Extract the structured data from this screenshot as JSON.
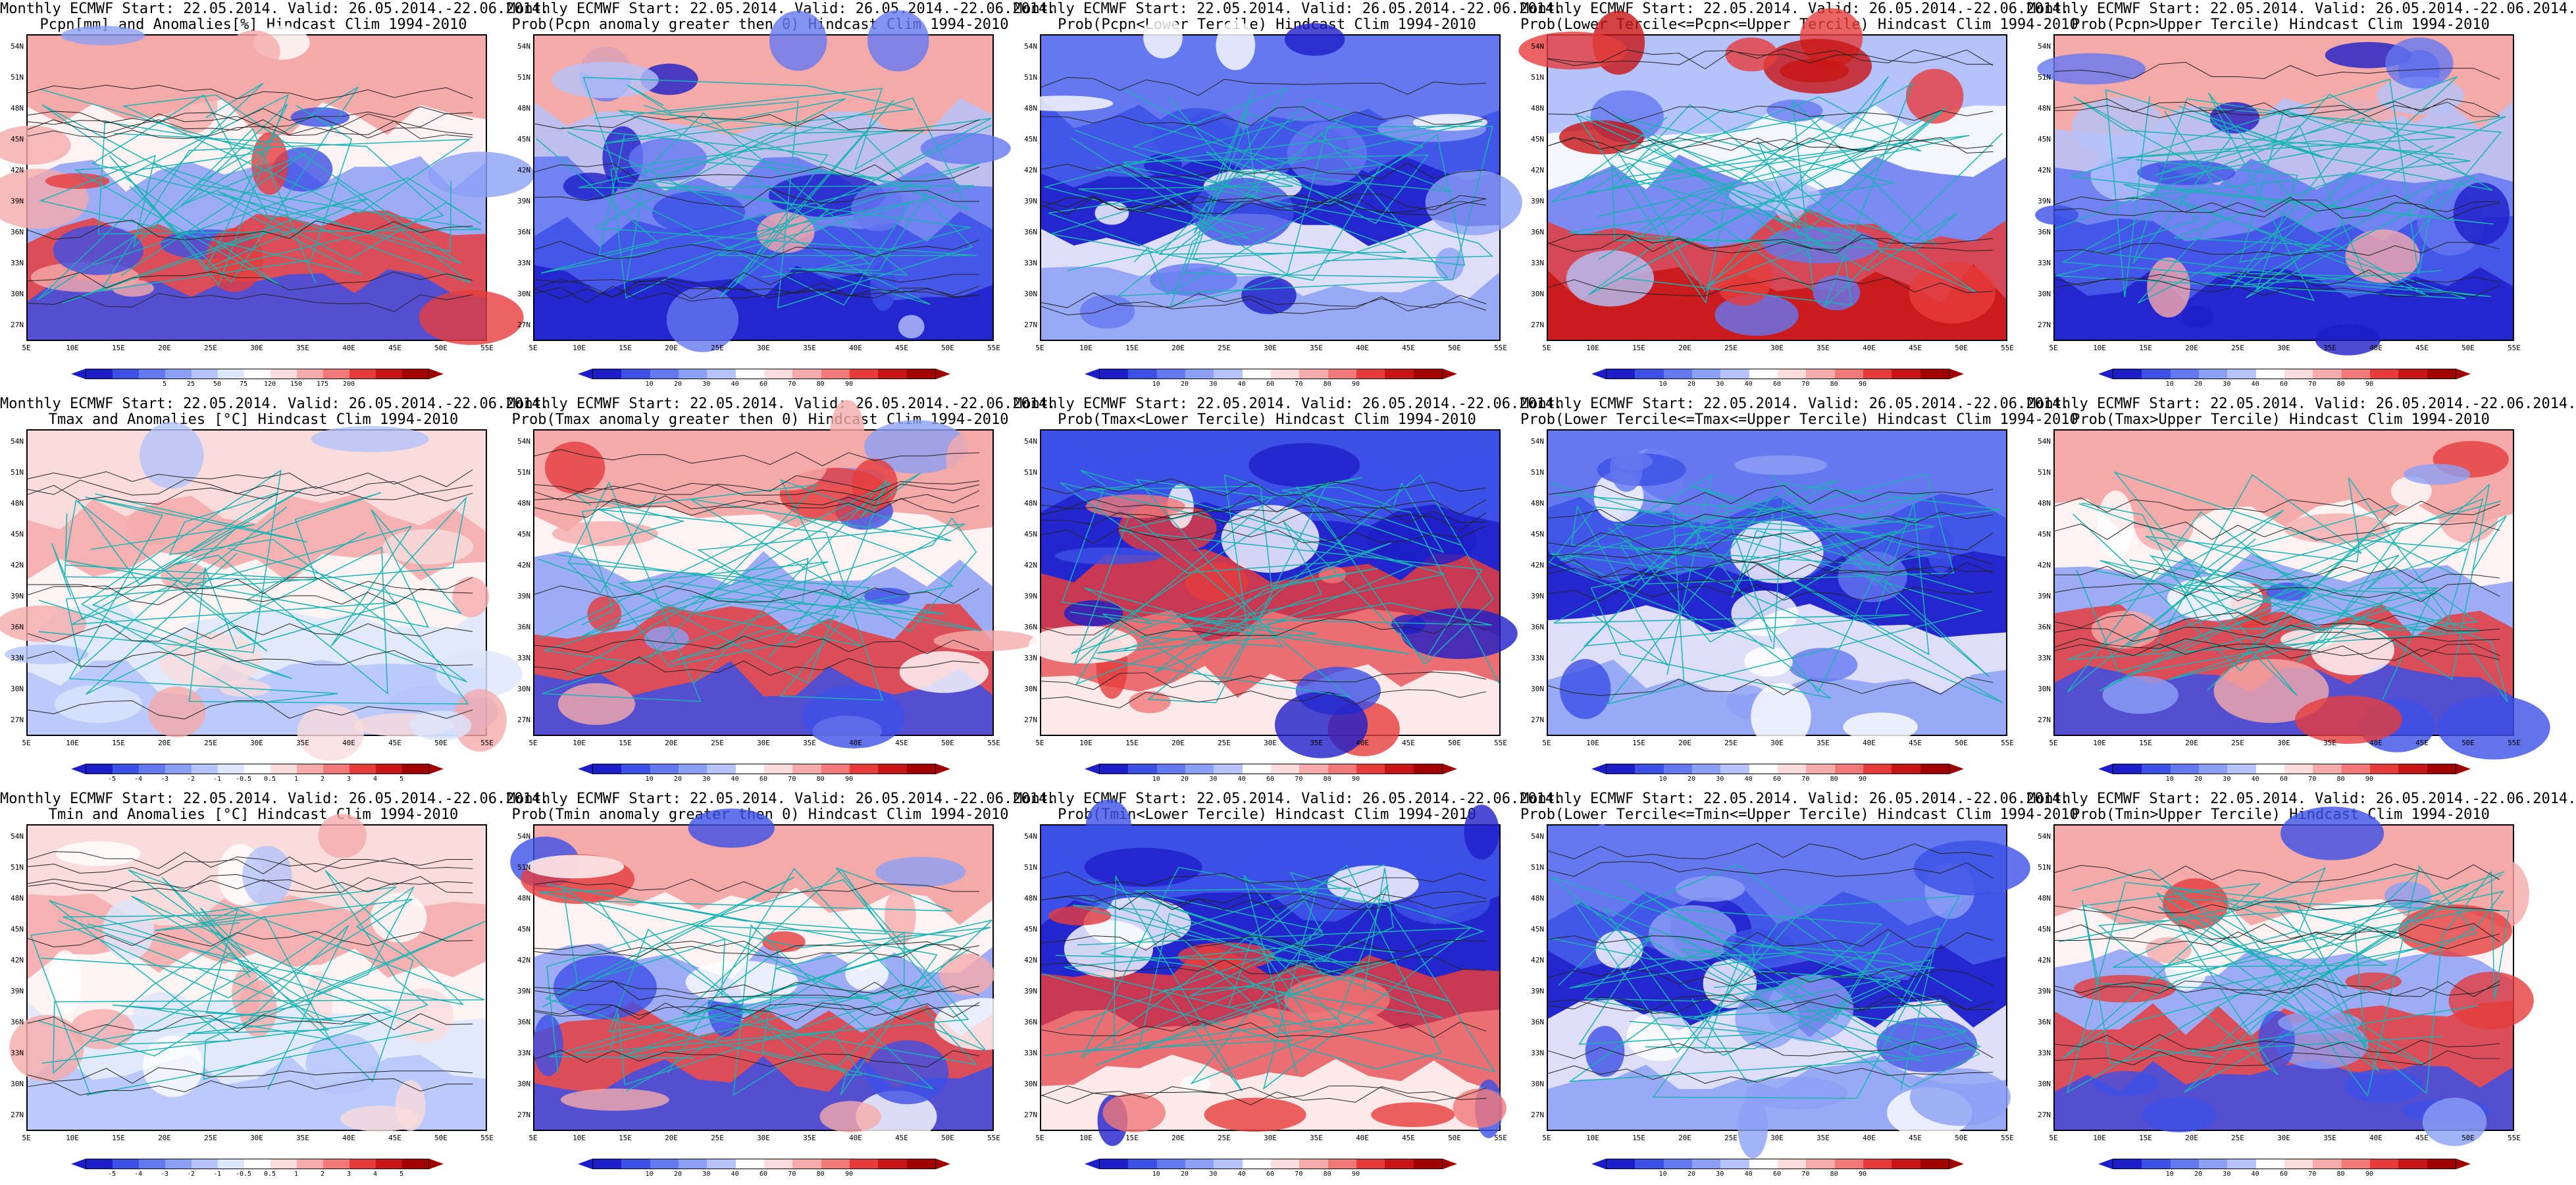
{
  "panels": [
    {
      "title1": "Monthly ECMWF Start: 22.05.2014. Valid: 26.05.2014.-22.06.2014.",
      "title2": "Pcpn[mm] and Anomalies[%] Hindcast Clim 1994-2010",
      "scale": "pcpn",
      "theme": "mixed"
    },
    {
      "title1": "Monthly ECMWF Start: 22.05.2014. Valid: 26.05.2014.-22.06.2014.",
      "title2": "Prob(Pcpn anomaly greater then 0) Hindcast Clim 1994-2010",
      "scale": "prob",
      "theme": "blue-south"
    },
    {
      "title1": "Monthly ECMWF Start: 22.05.2014. Valid: 26.05.2014.-22.06.2014.",
      "title2": "Prob(Pcpn<Lower Tercile) Hindcast Clim 1994-2010",
      "scale": "prob",
      "theme": "blue"
    },
    {
      "title1": "Monthly ECMWF Start: 22.05.2014. Valid: 26.05.2014.-22.06.2014.",
      "title2": "Prob(Lower Tercile<=Pcpn<=Upper Tercile) Hindcast Clim 1994-2010",
      "scale": "prob",
      "theme": "red-south"
    },
    {
      "title1": "Monthly ECMWF Start: 22.05.2014. Valid: 26.05.2014.-22.06.2014.",
      "title2": "Prob(Pcpn>Upper Tercile) Hindcast Clim 1994-2010",
      "scale": "prob",
      "theme": "blue-south"
    },
    {
      "title1": "Monthly ECMWF Start: 22.05.2014. Valid: 26.05.2014.-22.06.2014.",
      "title2": "Tmax and Anomalies [°C] Hindcast Clim 1994-2010",
      "scale": "temp",
      "theme": "light"
    },
    {
      "title1": "Monthly ECMWF Start: 22.05.2014. Valid: 26.05.2014.-22.06.2014.",
      "title2": "Prob(Tmax anomaly greater then 0) Hindcast Clim 1994-2010",
      "scale": "prob",
      "theme": "mixed"
    },
    {
      "title1": "Monthly ECMWF Start: 22.05.2014. Valid: 26.05.2014.-22.06.2014.",
      "title2": "Prob(Tmax<Lower Tercile) Hindcast Clim 1994-2010",
      "scale": "prob",
      "theme": "red-west"
    },
    {
      "title1": "Monthly ECMWF Start: 22.05.2014. Valid: 26.05.2014.-22.06.2014.",
      "title2": "Prob(Lower Tercile<=Tmax<=Upper Tercile) Hindcast Clim 1994-2010",
      "scale": "prob",
      "theme": "blue"
    },
    {
      "title1": "Monthly ECMWF Start: 22.05.2014. Valid: 26.05.2014.-22.06.2014.",
      "title2": "Prob(Tmax>Upper Tercile) Hindcast Clim 1994-2010",
      "scale": "prob",
      "theme": "mixed"
    },
    {
      "title1": "Monthly ECMWF Start: 22.05.2014. Valid: 26.05.2014.-22.06.2014.",
      "title2": "Tmin and Anomalies [°C] Hindcast Clim 1994-2010",
      "scale": "temp",
      "theme": "light"
    },
    {
      "title1": "Monthly ECMWF Start: 22.05.2014. Valid: 26.05.2014.-22.06.2014.",
      "title2": "Prob(Tmin anomaly greater then 0) Hindcast Clim 1994-2010",
      "scale": "prob",
      "theme": "mixed"
    },
    {
      "title1": "Monthly ECMWF Start: 22.05.2014. Valid: 26.05.2014.-22.06.2014.",
      "title2": "Prob(Tmin<Lower Tercile) Hindcast Clim 1994-2010",
      "scale": "prob",
      "theme": "red-west"
    },
    {
      "title1": "Monthly ECMWF Start: 22.05.2014. Valid: 26.05.2014.-22.06.2014.",
      "title2": "Prob(Lower Tercile<=Tmin<=Upper Tercile) Hindcast Clim 1994-2010",
      "scale": "prob",
      "theme": "blue"
    },
    {
      "title1": "Monthly ECMWF Start: 22.05.2014. Valid: 26.05.2014.-22.06.2014.",
      "title2": "Prob(Tmin>Upper Tercile) Hindcast Clim 1994-2010",
      "scale": "prob",
      "theme": "mixed"
    }
  ],
  "lat_labels": [
    "54N",
    "51N",
    "48N",
    "45N",
    "42N",
    "39N",
    "36N",
    "33N",
    "30N",
    "27N"
  ],
  "lon_labels": [
    "5E",
    "10E",
    "15E",
    "20E",
    "25E",
    "30E",
    "35E",
    "40E",
    "45E",
    "50E",
    "55E"
  ],
  "scales": {
    "pcpn": {
      "ticks": [
        "5",
        "25",
        "50",
        "75",
        "120",
        "150",
        "175",
        "200"
      ],
      "colors": [
        "#1e1ec8",
        "#3c50e6",
        "#6478f0",
        "#8ca0f5",
        "#b4c3fa",
        "#dce6fc",
        "#ffffff",
        "#fadcdc",
        "#f5aaaa",
        "#f07878",
        "#e63c3c",
        "#c81414",
        "#a00000"
      ]
    },
    "prob": {
      "ticks": [
        "10",
        "20",
        "30",
        "40",
        "60",
        "70",
        "80",
        "90"
      ],
      "colors": [
        "#1e1ec8",
        "#3c50e6",
        "#6478f0",
        "#8ca0f5",
        "#b4c3fa",
        "#ffffff",
        "#fadcdc",
        "#f5aaaa",
        "#f07878",
        "#e63c3c",
        "#c81414",
        "#a00000"
      ]
    },
    "temp": {
      "ticks": [
        "-5",
        "-4",
        "-3",
        "-2",
        "-1",
        "-0.5",
        "0.5",
        "1",
        "2",
        "3",
        "4",
        "5"
      ],
      "colors": [
        "#1e1ec8",
        "#3c50e6",
        "#6478f0",
        "#8ca0f5",
        "#b4c3fa",
        "#dce6fc",
        "#ffffff",
        "#fadcdc",
        "#f5aaaa",
        "#f07878",
        "#e63c3c",
        "#c81414",
        "#a00000"
      ]
    }
  },
  "theme_colors": {
    "mixed": [
      "#f5aaaa",
      "#ffffff",
      "#8ca0f5",
      "#e63c3c",
      "#3c50e6"
    ],
    "blue-south": [
      "#f5aaaa",
      "#b4c3fa",
      "#6478f0",
      "#3c50e6",
      "#1e1ec8"
    ],
    "blue": [
      "#6478f0",
      "#3c50e6",
      "#1e1ec8",
      "#ffffff",
      "#8ca0f5"
    ],
    "red-south": [
      "#b4c3fa",
      "#ffffff",
      "#6478f0",
      "#e63c3c",
      "#c81414"
    ],
    "light": [
      "#fadcdc",
      "#f5aaaa",
      "#ffffff",
      "#dce6fc",
      "#b4c3fa"
    ],
    "red-west": [
      "#3c50e6",
      "#1e1ec8",
      "#e63c3c",
      "#f07878",
      "#ffffff"
    ]
  }
}
